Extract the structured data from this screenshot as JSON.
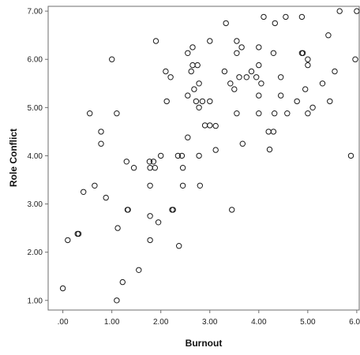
{
  "chart_data": {
    "type": "scatter",
    "title": "",
    "xlabel": "Burnout",
    "ylabel": "Role Conflict",
    "xlim": [
      -0.3,
      6.05
    ],
    "ylim": [
      0.8,
      7.1
    ],
    "x_ticks": [
      0,
      1,
      2,
      3,
      4,
      5,
      6
    ],
    "x_tick_labels": [
      ".00",
      "1.00",
      "2.00",
      "3.00",
      "4.00",
      "5.00",
      "6.00"
    ],
    "y_ticks": [
      1,
      2,
      3,
      4,
      5,
      6,
      7
    ],
    "y_tick_labels": [
      "1.00",
      "2.00",
      "3.00",
      "4.00",
      "5.00",
      "6.00",
      "7.00"
    ],
    "grid": false,
    "marker": "open-circle",
    "colors": {
      "marker": "#1a1a1a",
      "frame": "#6e6e6e",
      "background": "#ffffff"
    },
    "points": [
      [
        0.0,
        1.25
      ],
      [
        0.1,
        2.25
      ],
      [
        0.3,
        2.38
      ],
      [
        0.32,
        2.38
      ],
      [
        0.42,
        3.25
      ],
      [
        0.55,
        4.88
      ],
      [
        0.65,
        3.38
      ],
      [
        0.78,
        4.5
      ],
      [
        0.78,
        4.25
      ],
      [
        0.88,
        3.13
      ],
      [
        1.0,
        6.0
      ],
      [
        1.1,
        4.88
      ],
      [
        1.1,
        1.0
      ],
      [
        1.12,
        2.5
      ],
      [
        1.22,
        1.38
      ],
      [
        1.3,
        3.88
      ],
      [
        1.32,
        2.88
      ],
      [
        1.33,
        2.88
      ],
      [
        1.45,
        3.75
      ],
      [
        1.55,
        1.63
      ],
      [
        1.77,
        3.88
      ],
      [
        1.78,
        3.75
      ],
      [
        1.78,
        3.38
      ],
      [
        1.78,
        2.75
      ],
      [
        1.78,
        2.25
      ],
      [
        1.85,
        3.88
      ],
      [
        1.88,
        3.75
      ],
      [
        1.9,
        6.38
      ],
      [
        1.95,
        2.62
      ],
      [
        2.0,
        4.0
      ],
      [
        2.1,
        5.75
      ],
      [
        2.12,
        5.13
      ],
      [
        2.2,
        5.63
      ],
      [
        2.23,
        2.88
      ],
      [
        2.25,
        2.88
      ],
      [
        2.35,
        4.0
      ],
      [
        2.37,
        2.13
      ],
      [
        2.43,
        4.0
      ],
      [
        2.45,
        3.75
      ],
      [
        2.45,
        3.38
      ],
      [
        2.55,
        6.13
      ],
      [
        2.55,
        5.25
      ],
      [
        2.55,
        4.38
      ],
      [
        2.62,
        5.75
      ],
      [
        2.65,
        6.25
      ],
      [
        2.65,
        5.88
      ],
      [
        2.68,
        5.38
      ],
      [
        2.72,
        5.13
      ],
      [
        2.75,
        5.88
      ],
      [
        2.78,
        5.5
      ],
      [
        2.78,
        5.0
      ],
      [
        2.78,
        4.0
      ],
      [
        2.8,
        3.38
      ],
      [
        2.85,
        5.13
      ],
      [
        2.9,
        4.63
      ],
      [
        3.0,
        6.38
      ],
      [
        3.0,
        5.13
      ],
      [
        3.0,
        4.63
      ],
      [
        3.12,
        4.62
      ],
      [
        3.12,
        4.12
      ],
      [
        3.3,
        5.75
      ],
      [
        3.33,
        6.75
      ],
      [
        3.42,
        5.5
      ],
      [
        3.45,
        2.88
      ],
      [
        3.5,
        5.38
      ],
      [
        3.55,
        6.38
      ],
      [
        3.55,
        6.13
      ],
      [
        3.55,
        4.88
      ],
      [
        3.6,
        5.63
      ],
      [
        3.65,
        6.25
      ],
      [
        3.67,
        4.25
      ],
      [
        3.75,
        5.63
      ],
      [
        3.85,
        5.75
      ],
      [
        3.95,
        5.63
      ],
      [
        4.0,
        6.25
      ],
      [
        4.0,
        5.88
      ],
      [
        4.0,
        5.25
      ],
      [
        4.0,
        4.88
      ],
      [
        4.05,
        5.5
      ],
      [
        4.1,
        6.88
      ],
      [
        4.2,
        4.5
      ],
      [
        4.22,
        4.13
      ],
      [
        4.3,
        6.13
      ],
      [
        4.3,
        4.5
      ],
      [
        4.32,
        4.88
      ],
      [
        4.33,
        6.75
      ],
      [
        4.45,
        5.63
      ],
      [
        4.45,
        5.25
      ],
      [
        4.55,
        6.88
      ],
      [
        4.58,
        4.88
      ],
      [
        4.78,
        5.13
      ],
      [
        4.88,
        6.88
      ],
      [
        4.88,
        6.13
      ],
      [
        4.9,
        6.13
      ],
      [
        4.95,
        5.38
      ],
      [
        5.0,
        6.0
      ],
      [
        5.0,
        5.88
      ],
      [
        5.0,
        4.88
      ],
      [
        5.1,
        5.0
      ],
      [
        5.3,
        5.5
      ],
      [
        5.42,
        6.5
      ],
      [
        5.45,
        5.13
      ],
      [
        5.55,
        5.75
      ],
      [
        5.65,
        7.0
      ],
      [
        5.88,
        4.0
      ],
      [
        5.97,
        6.0
      ],
      [
        6.0,
        7.0
      ]
    ]
  }
}
